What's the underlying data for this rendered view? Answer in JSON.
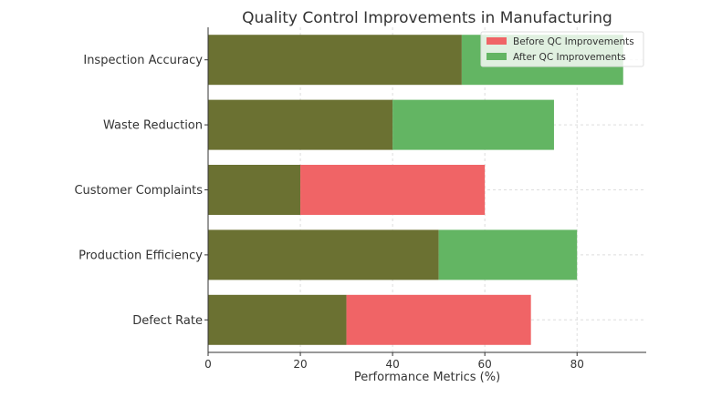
{
  "chart_data": {
    "type": "bar",
    "orientation": "horizontal",
    "title": "Quality Control Improvements in Manufacturing",
    "xlabel": "Performance Metrics (%)",
    "ylabel": "",
    "categories": [
      "Defect Rate",
      "Production Efficiency",
      "Customer Complaints",
      "Waste Reduction",
      "Inspection Accuracy"
    ],
    "series": [
      {
        "name": "Before QC Improvements",
        "values": [
          70,
          50,
          60,
          40,
          55
        ],
        "color": "#f06466"
      },
      {
        "name": "After QC Improvements",
        "values": [
          30,
          80,
          20,
          75,
          90
        ],
        "color": "#63b563"
      }
    ],
    "overlap_color": "#6b7132",
    "xlim": [
      0,
      95
    ],
    "xticks": [
      "0",
      "20",
      "40",
      "60",
      "80"
    ],
    "grid": true,
    "legend_position": "top-right"
  }
}
